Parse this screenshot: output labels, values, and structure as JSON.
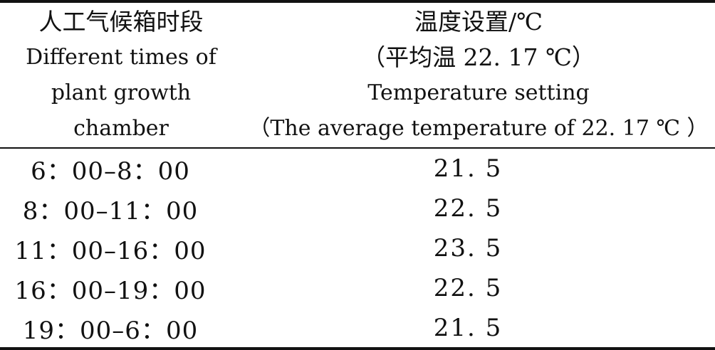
{
  "table": {
    "header": {
      "col1": {
        "cn": "人工气候箱时段",
        "en_line1": "Different times of",
        "en_line2": "plant growth",
        "en_line3": "chamber"
      },
      "col2": {
        "cn": "温度设置/℃",
        "cn_sub": "（平均温 22. 17 ℃）",
        "en_line1": "Temperature setting",
        "en_line2": "（The average temperature of 22. 17 ℃ ）"
      }
    },
    "rows": [
      {
        "time": "6：00–8：00",
        "temp": "21. 5"
      },
      {
        "time": "8：00–11：00",
        "temp": "22. 5"
      },
      {
        "time": "11：00–16：00",
        "temp": "23. 5"
      },
      {
        "time": "16：00–19：00",
        "temp": "22. 5"
      },
      {
        "time": "19：00–6：00",
        "temp": "21. 5"
      }
    ]
  }
}
